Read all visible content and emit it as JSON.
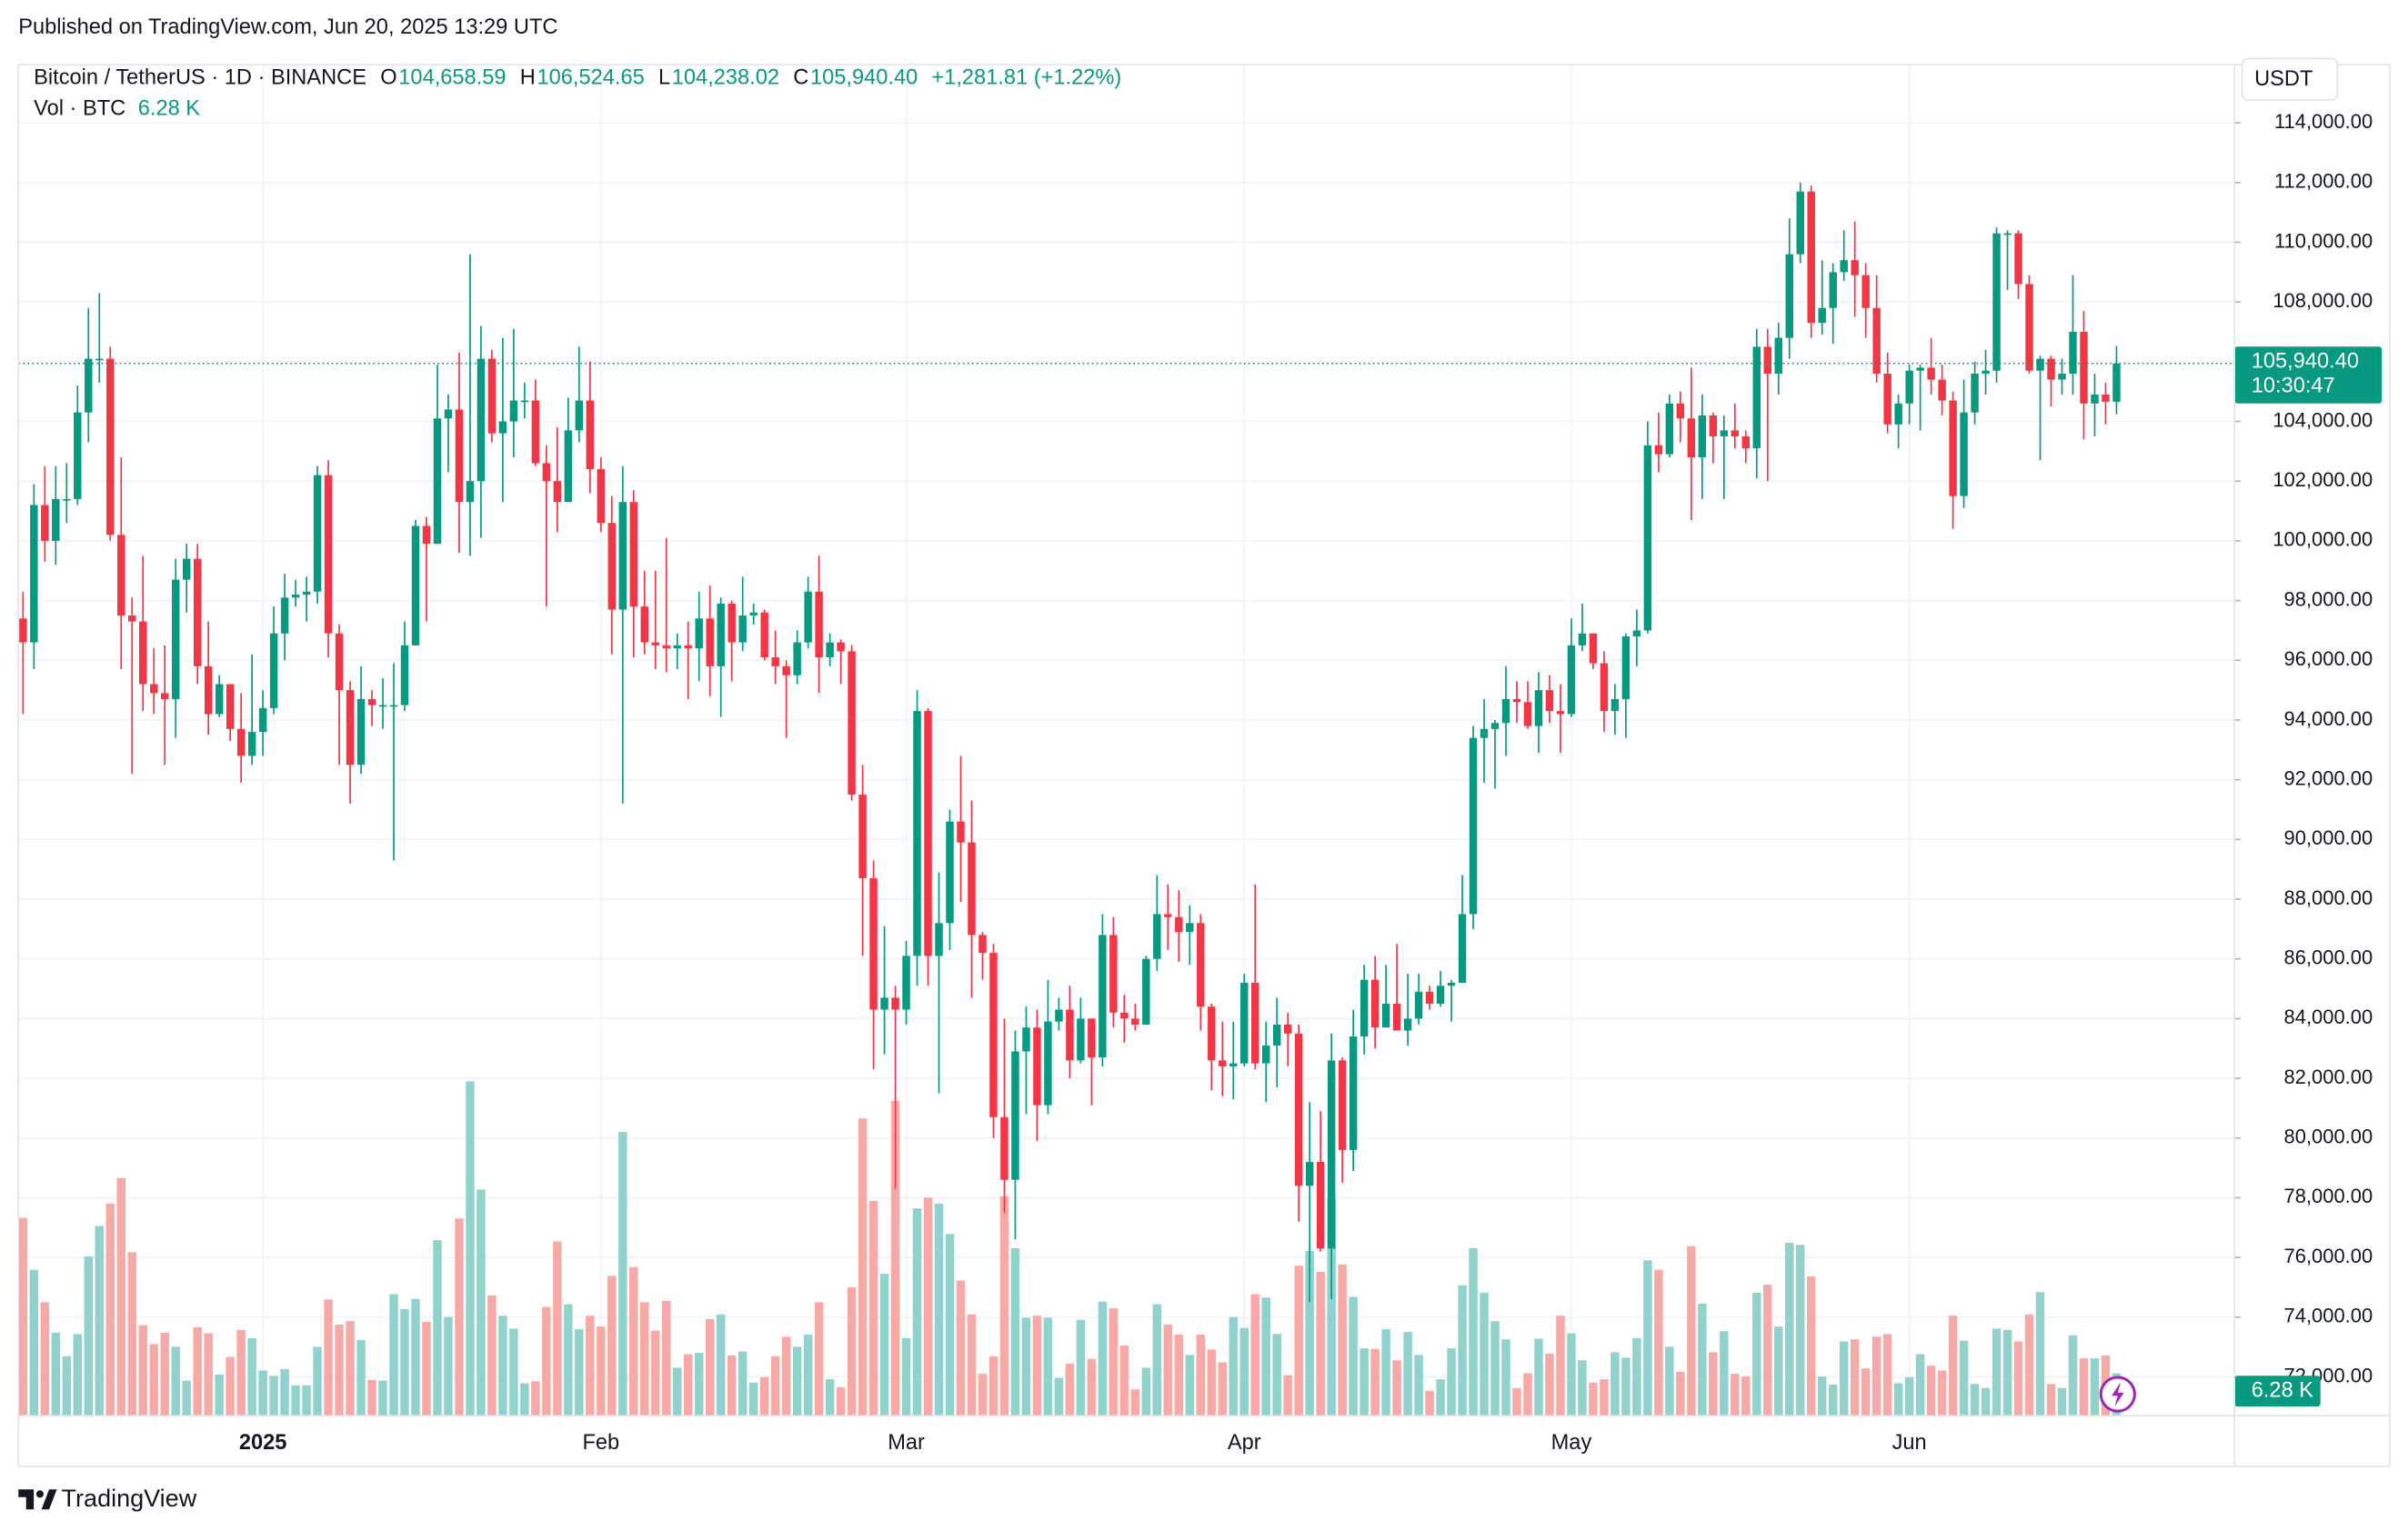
{
  "header": {
    "published": "Published on TradingView.com, Jun 20, 2025 13:29 UTC"
  },
  "footer": {
    "brand": "TradingView"
  },
  "chart_data": {
    "type": "candlestick",
    "symbol": "Bitcoin / TetherUS · 1D · BINANCE",
    "ohlc_header": [
      {
        "key": "O",
        "label": "104,658.59"
      },
      {
        "key": "H",
        "label": "106,524.65"
      },
      {
        "key": "L",
        "label": "104,238.02"
      },
      {
        "key": "C",
        "label": "105,940.40"
      }
    ],
    "change_label": "+1,281.81 (+1.22%)",
    "countdown": "10:30:47",
    "currency": "USDT",
    "up_color": "#089981",
    "down_color": "#f23645",
    "volume_up_color": "#92d2cc",
    "volume_down_color": "#f7a9a7",
    "grid": true,
    "ylim": [
      70700,
      115950
    ],
    "yticks": [
      {
        "value": 72000,
        "label": "72,000.00"
      },
      {
        "value": 74000,
        "label": "74,000.00"
      },
      {
        "value": 76000,
        "label": "76,000.00"
      },
      {
        "value": 78000,
        "label": "78,000.00"
      },
      {
        "value": 80000,
        "label": "80,000.00"
      },
      {
        "value": 82000,
        "label": "82,000.00"
      },
      {
        "value": 84000,
        "label": "84,000.00"
      },
      {
        "value": 86000,
        "label": "86,000.00"
      },
      {
        "value": 88000,
        "label": "88,000.00"
      },
      {
        "value": 90000,
        "label": "90,000.00"
      },
      {
        "value": 92000,
        "label": "92,000.00"
      },
      {
        "value": 94000,
        "label": "94,000.00"
      },
      {
        "value": 96000,
        "label": "96,000.00"
      },
      {
        "value": 98000,
        "label": "98,000.00"
      },
      {
        "value": 100000,
        "label": "100,000.00"
      },
      {
        "value": 102000,
        "label": "102,000.00"
      },
      {
        "value": 104000,
        "label": "104,000.00"
      },
      {
        "value": 106000,
        "label": "106,000.00"
      },
      {
        "value": 108000,
        "label": "108,000.00"
      },
      {
        "value": 110000,
        "label": "110,000.00"
      },
      {
        "value": 112000,
        "label": "112,000.00"
      },
      {
        "value": 114000,
        "label": "114,000.00"
      }
    ],
    "xticks": [
      {
        "value": 22,
        "label": "2025"
      },
      {
        "value": 53,
        "label": "Feb"
      },
      {
        "value": 81,
        "label": "Mar"
      },
      {
        "value": 112,
        "label": "Apr"
      },
      {
        "value": 142,
        "label": "May"
      },
      {
        "value": 173,
        "label": "Jun"
      }
    ],
    "open": [
      97400,
      96600,
      101200,
      100000,
      101400,
      101400,
      104300,
      106100,
      106100,
      100200,
      97500,
      97300,
      95200,
      94900,
      94700,
      98700,
      99400,
      95800,
      94200,
      95200,
      93700,
      92800,
      93600,
      94400,
      96900,
      98100,
      98200,
      98300,
      102200,
      96900,
      95000,
      92500,
      94700,
      94500,
      94500,
      94500,
      96500,
      100500,
      99900,
      104100,
      104400,
      101300,
      102000,
      106100,
      103600,
      104000,
      104700,
      104700,
      102600,
      102000,
      101300,
      103700,
      104700,
      102400,
      100600,
      97700,
      101300,
      97800,
      96600,
      96500,
      96400,
      96500,
      96400,
      97400,
      95800,
      97900,
      96600,
      97500,
      97600,
      96100,
      95800,
      95500,
      96600,
      98300,
      96100,
      96600,
      96300,
      91500,
      88700,
      84300,
      84700,
      84300,
      86100,
      94300,
      86100,
      87200,
      90600,
      89900,
      86800,
      86200,
      80700,
      78600,
      82900,
      83700,
      81100,
      83900,
      84300,
      82600,
      84000,
      82700,
      86800,
      84200,
      84000,
      83800,
      86000,
      87500,
      87400,
      86900,
      87200,
      84400,
      82600,
      82400,
      82500,
      85200,
      82500,
      83100,
      83800,
      83500,
      78400,
      79200,
      76300,
      82600,
      79600,
      83400,
      85300,
      83700,
      84500,
      83600,
      84000,
      84900,
      84500,
      85100,
      85200,
      87500,
      93400,
      93700,
      93900,
      94700,
      94600,
      93800,
      95000,
      94300,
      94200,
      96500,
      96900,
      95900,
      94300,
      94700,
      96800,
      97000,
      103200,
      102900,
      104600,
      104100,
      102800,
      104200,
      103500,
      103700,
      103500,
      103100,
      106500,
      105600,
      106800,
      109600,
      111700,
      107300,
      107800,
      109000,
      109400,
      108900,
      107800,
      105600,
      103900,
      104600,
      105700,
      105800,
      105400,
      104700,
      101500,
      104300,
      105600,
      105700,
      110300,
      110300,
      108600,
      105700,
      106100,
      105400,
      105600,
      107000,
      104600,
      104900,
      104658.59
    ],
    "high": [
      98300,
      101900,
      102500,
      102500,
      102600,
      105200,
      107800,
      108300,
      106500,
      102800,
      98100,
      99500,
      96400,
      96500,
      99400,
      99900,
      99900,
      97300,
      95500,
      95200,
      94900,
      96200,
      95000,
      97800,
      98900,
      98700,
      98800,
      102500,
      102700,
      97200,
      95300,
      95800,
      95000,
      95400,
      95900,
      97300,
      100700,
      100800,
      105900,
      104900,
      106300,
      109600,
      107200,
      106400,
      106800,
      107100,
      105300,
      105400,
      103200,
      103800,
      104800,
      106500,
      106000,
      102800,
      101500,
      102500,
      101700,
      99000,
      99000,
      100100,
      96900,
      97300,
      98300,
      98500,
      98100,
      98000,
      98800,
      97900,
      97700,
      97000,
      96000,
      97000,
      98800,
      99500,
      96900,
      96700,
      96500,
      92500,
      89300,
      87100,
      85100,
      86600,
      95000,
      94400,
      88900,
      91000,
      92800,
      91300,
      86900,
      86500,
      84000,
      83600,
      84400,
      84300,
      85300,
      84700,
      85100,
      84700,
      84000,
      87500,
      87400,
      84800,
      84500,
      86100,
      88800,
      88500,
      88300,
      87800,
      87500,
      84500,
      83900,
      83900,
      85500,
      88500,
      83900,
      84700,
      84200,
      83800,
      81200,
      80900,
      83500,
      82700,
      84300,
      85800,
      86100,
      85800,
      86500,
      85500,
      85500,
      85100,
      85600,
      85300,
      88800,
      93800,
      94700,
      94000,
      95800,
      95300,
      95300,
      95600,
      95500,
      95200,
      97400,
      97900,
      96900,
      96300,
      95200,
      96900,
      97700,
      104000,
      104300,
      104900,
      105000,
      105800,
      104900,
      104300,
      104200,
      104600,
      103700,
      107100,
      107100,
      107300,
      110800,
      112000,
      111900,
      109400,
      109300,
      110400,
      110700,
      109300,
      108900,
      106300,
      104900,
      105900,
      105900,
      106800,
      105900,
      105000,
      105400,
      106000,
      106400,
      110500,
      110400,
      110400,
      108900,
      106200,
      106200,
      106100,
      108900,
      107700,
      105600,
      105300,
      106524.65
    ],
    "low": [
      94200,
      95700,
      99300,
      99200,
      100600,
      101200,
      103300,
      105300,
      100000,
      95700,
      92200,
      94300,
      94200,
      92500,
      93400,
      97600,
      95200,
      93500,
      94100,
      93300,
      91900,
      92500,
      92800,
      94200,
      96000,
      97800,
      97300,
      97900,
      96100,
      92500,
      91200,
      92200,
      93800,
      93700,
      89300,
      94300,
      96500,
      97300,
      99900,
      102300,
      99600,
      99500,
      100100,
      103300,
      101300,
      102800,
      104100,
      102500,
      97800,
      100300,
      101300,
      103300,
      101600,
      100300,
      96200,
      91200,
      96100,
      96200,
      95700,
      95600,
      95700,
      94700,
      95300,
      94800,
      94100,
      95300,
      96300,
      97200,
      96000,
      95200,
      93400,
      95200,
      96400,
      94900,
      95800,
      95200,
      91300,
      86100,
      82300,
      82800,
      78300,
      83800,
      85100,
      85100,
      81500,
      86300,
      87900,
      84700,
      85300,
      80000,
      77500,
      76600,
      80800,
      79900,
      80800,
      83600,
      82000,
      82500,
      81100,
      82400,
      83700,
      83200,
      83600,
      83800,
      85600,
      86300,
      85900,
      85800,
      83600,
      81600,
      81400,
      81300,
      82400,
      82300,
      81200,
      81700,
      82400,
      77200,
      74500,
      76200,
      74600,
      78500,
      78900,
      82800,
      83000,
      83700,
      83600,
      83100,
      83800,
      84300,
      84400,
      83900,
      85200,
      87000,
      91900,
      91700,
      92800,
      93900,
      93700,
      92900,
      93900,
      92900,
      94100,
      96300,
      95700,
      93600,
      93500,
      93400,
      95800,
      96900,
      102300,
      102800,
      103300,
      100700,
      101400,
      102600,
      101400,
      103100,
      102600,
      102100,
      102000,
      104900,
      106100,
      109300,
      106800,
      106900,
      106600,
      108700,
      107500,
      106800,
      105300,
      103600,
      103100,
      103900,
      103700,
      104900,
      104200,
      100400,
      101100,
      103900,
      104900,
      105300,
      108400,
      108100,
      105600,
      102700,
      104500,
      104900,
      104900,
      103400,
      103500,
      103900,
      104238.02
    ],
    "close": [
      96600,
      101200,
      100000,
      101400,
      101400,
      104300,
      106100,
      106100,
      100200,
      97500,
      97300,
      95200,
      94900,
      94700,
      98700,
      99400,
      95800,
      94200,
      95200,
      93700,
      92800,
      93600,
      94400,
      96900,
      98100,
      98200,
      98300,
      102200,
      96900,
      95000,
      92500,
      94700,
      94500,
      94500,
      94500,
      96500,
      100500,
      99900,
      104100,
      104400,
      101300,
      102000,
      106100,
      103600,
      104000,
      104700,
      104700,
      102600,
      102000,
      101300,
      103700,
      104700,
      102400,
      100600,
      97700,
      101300,
      97800,
      96600,
      96500,
      96400,
      96500,
      96400,
      97400,
      95800,
      97900,
      96600,
      97500,
      97600,
      96100,
      95800,
      95500,
      96600,
      98300,
      96100,
      96600,
      96300,
      91500,
      88700,
      84300,
      84700,
      84300,
      86100,
      94300,
      86100,
      87200,
      90600,
      89900,
      86800,
      86200,
      80700,
      78600,
      82900,
      83700,
      81100,
      83900,
      84300,
      82600,
      84000,
      82700,
      86800,
      84200,
      84000,
      83800,
      86000,
      87500,
      87400,
      86900,
      87200,
      84400,
      82600,
      82400,
      82500,
      85200,
      82500,
      83100,
      83800,
      83500,
      78400,
      79200,
      76300,
      82600,
      79600,
      83400,
      85300,
      83700,
      84500,
      83600,
      84000,
      84900,
      84500,
      85100,
      85200,
      87500,
      93400,
      93700,
      93900,
      94700,
      94600,
      93800,
      95000,
      94300,
      94200,
      96500,
      96900,
      95900,
      94300,
      94700,
      96800,
      97000,
      103200,
      102900,
      104600,
      104100,
      102800,
      104200,
      103500,
      103700,
      103500,
      103100,
      106500,
      105600,
      106800,
      109600,
      111700,
      107300,
      107800,
      109000,
      109400,
      108900,
      107800,
      105600,
      103900,
      104600,
      105700,
      105800,
      105400,
      104700,
      101500,
      104300,
      105600,
      105700,
      110300,
      110300,
      108600,
      105700,
      106100,
      105400,
      105600,
      107000,
      104600,
      104900,
      104658.59,
      105940.4
    ],
    "volume": {
      "name": "Vol · BTC",
      "last_label": "6.28 K",
      "lim": [
        0,
        200000
      ],
      "values": [
        29300,
        21600,
        16800,
        12300,
        8800,
        12100,
        23600,
        28100,
        31400,
        35200,
        24200,
        13400,
        10600,
        12300,
        10200,
        5200,
        13100,
        12200,
        6100,
        8700,
        12700,
        11500,
        6700,
        5900,
        6900,
        4500,
        4500,
        10200,
        17200,
        13500,
        14000,
        11200,
        5300,
        5200,
        18000,
        15800,
        17300,
        13900,
        26000,
        14600,
        29200,
        49500,
        33500,
        17800,
        14800,
        12900,
        4800,
        5100,
        16100,
        25800,
        16500,
        12800,
        14800,
        13200,
        20700,
        42000,
        22000,
        16800,
        12600,
        17000,
        7100,
        9100,
        9300,
        14300,
        15000,
        8900,
        9500,
        4900,
        5700,
        8800,
        11700,
        10200,
        12000,
        16800,
        5400,
        4200,
        19000,
        44000,
        31800,
        21000,
        46600,
        11500,
        30700,
        32300,
        31400,
        26900,
        20000,
        15000,
        6200,
        8800,
        32500,
        24800,
        14500,
        14800,
        14500,
        5600,
        7700,
        14200,
        8400,
        16900,
        15900,
        10400,
        3900,
        7100,
        16500,
        13500,
        12000,
        9000,
        12000,
        9800,
        7900,
        14600,
        13000,
        18000,
        17500,
        12100,
        6000,
        22200,
        24400,
        21300,
        32200,
        22400,
        17600,
        10000,
        9900,
        12800,
        8200,
        12400,
        9000,
        3700,
        5400,
        10000,
        19300,
        24800,
        18200,
        14000,
        11300,
        4100,
        6300,
        11400,
        9200,
        14800,
        12200,
        8200,
        4900,
        5400,
        9400,
        8600,
        11500,
        23000,
        21600,
        10200,
        6500,
        25100,
        16600,
        9400,
        12500,
        6200,
        5800,
        18200,
        19400,
        13200,
        25600,
        25300,
        20600,
        5800,
        4600,
        11000,
        11300,
        7000,
        11700,
        12100,
        4800,
        5700,
        9100,
        7400,
        6700,
        14800,
        11100,
        4700,
        4100,
        12900,
        12700,
        11000,
        15000,
        18300,
        4700,
        4100,
        11900,
        8500,
        8500,
        8900,
        6280
      ]
    }
  }
}
